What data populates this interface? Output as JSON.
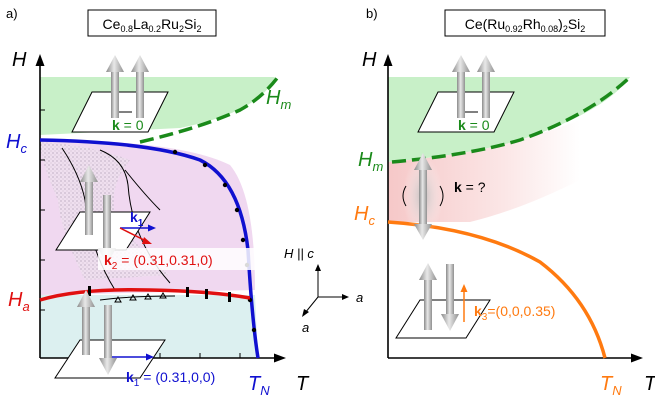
{
  "panel_a": {
    "label": "a)",
    "compound": "Ce0.8La0.2Ru2Si2",
    "compound_parts": {
      "b1": "Ce",
      "s1": "0.8",
      "b2": "La",
      "s2": "0.2",
      "b3": "Ru",
      "s3": "2",
      "b4": "Si",
      "s4": "2"
    },
    "axis_y": "H",
    "axis_x": "T",
    "Hm": {
      "main": "H",
      "sub": "m"
    },
    "Hc": {
      "main": "H",
      "sub": "c"
    },
    "Ha": {
      "main": "H",
      "sub": "a"
    },
    "TN": {
      "main": "T",
      "sub": "N"
    },
    "k0": {
      "k": "k",
      "rest": " = 0"
    },
    "k1_short": {
      "k": "k",
      "sub": "1"
    },
    "k2": {
      "k": "k",
      "sub": "2",
      "rest": " = (0.31,0.31,0)"
    },
    "k1_full": {
      "k": "k",
      "sub": "1",
      "rest": " = (0.31,0,0)"
    },
    "axes_triad": {
      "field": "H || c",
      "a1": "a",
      "a2": "a"
    }
  },
  "panel_b": {
    "label": "b)",
    "compound": "Ce(Ru0.92Rh0.08)2Si2",
    "compound_parts": {
      "b1": "Ce(Ru",
      "s1": "0.92",
      "b2": "Rh",
      "s2": "0.08",
      "b3": ")",
      "s3": "2",
      "b4": "Si",
      "s4": "2"
    },
    "axis_y": "H",
    "axis_x": "T",
    "Hm": {
      "main": "H",
      "sub": "m"
    },
    "Hc": {
      "main": "H",
      "sub": "c"
    },
    "TN": {
      "main": "T",
      "sub": "N"
    },
    "k0": {
      "k": "k",
      "rest": " = 0"
    },
    "kq": {
      "k": "k",
      "rest": " = ?"
    },
    "k3": {
      "k": "k",
      "sub": "3",
      "rest": "=(0,0,0.35)"
    }
  },
  "colors": {
    "green": "#1a8a1a",
    "green_fill": "#c8f0c8",
    "blue": "#1010d0",
    "red": "#e01010",
    "orange": "#ff7a10",
    "pink_fill": "#f0d8f0",
    "cyan_fill": "#dcf0f0",
    "arrow_gray": "#b0b0b0"
  }
}
